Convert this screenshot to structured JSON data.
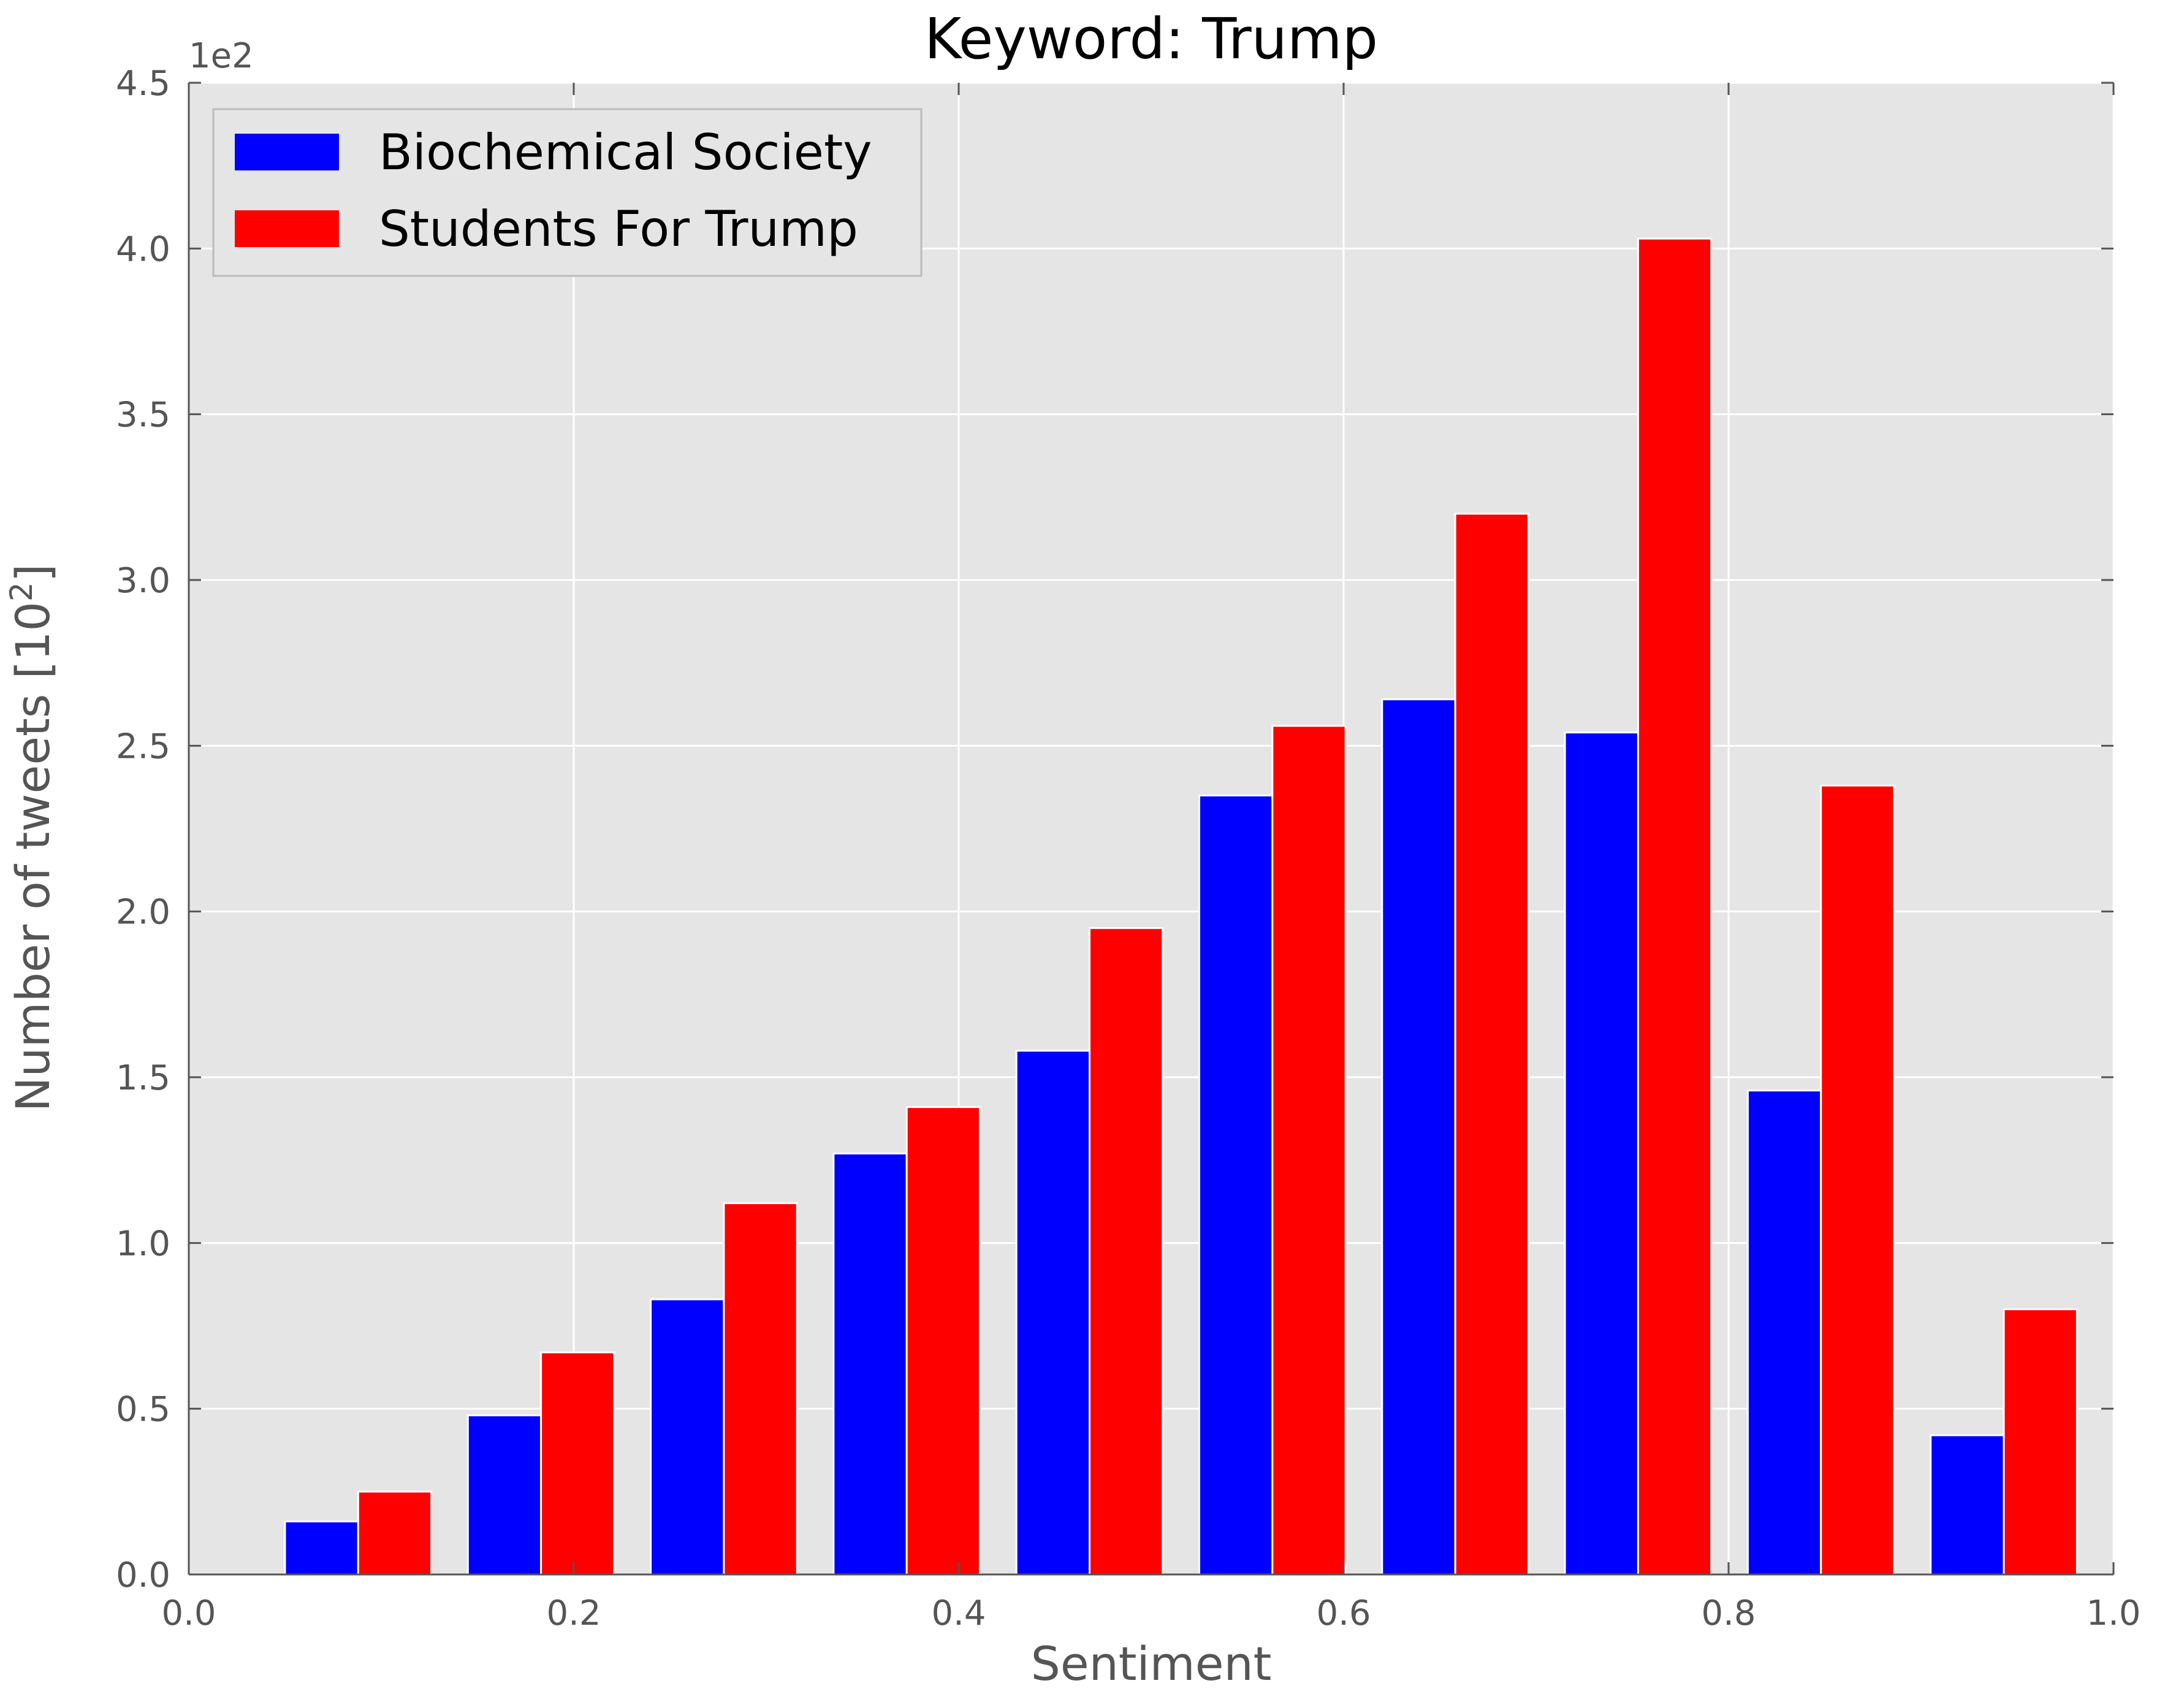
{
  "chart_data": {
    "type": "bar",
    "title": "Keyword: Trump",
    "xlabel": "Sentiment",
    "ylabel": "Number of tweets [10",
    "ylabel_superscript": "2",
    "ylabel_close": "]",
    "y_offset_label": "1e2",
    "xlim": [
      0.0,
      1.0
    ],
    "ylim": [
      0.0,
      4.5
    ],
    "x_ticks": [
      "0.0",
      "0.2",
      "0.4",
      "0.6",
      "0.8",
      "1.0"
    ],
    "y_ticks": [
      "0.0",
      "0.5",
      "1.0",
      "1.5",
      "2.0",
      "2.5",
      "3.0",
      "3.5",
      "4.0",
      "4.5"
    ],
    "grid": true,
    "legend_position": "top-left",
    "background_color": "#e5e5e5",
    "grid_color": "#ffffff",
    "bin_edges": [
      0.05,
      0.145,
      0.24,
      0.335,
      0.43,
      0.525,
      0.62,
      0.715,
      0.81,
      0.905,
      1.0
    ],
    "series": [
      {
        "name": "Biochemical Society",
        "color": "#0000ff",
        "values": [
          0.16,
          0.48,
          0.83,
          1.27,
          1.58,
          2.35,
          2.64,
          2.54,
          1.46,
          0.42
        ]
      },
      {
        "name": "Students For Trump",
        "color": "#ff0000",
        "values": [
          0.25,
          0.67,
          1.12,
          1.41,
          1.95,
          2.56,
          3.2,
          4.03,
          2.38,
          0.8
        ]
      }
    ]
  }
}
